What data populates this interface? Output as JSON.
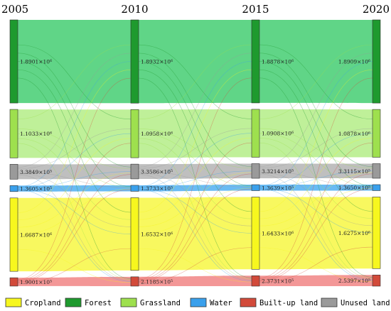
{
  "chart_data": {
    "type": "sankey",
    "years": [
      "2005",
      "2010",
      "2015",
      "2020"
    ],
    "categories": [
      {
        "key": "forest",
        "name": "Forest",
        "color": "#1e9a2e",
        "band_color": "#4fd07a"
      },
      {
        "key": "grassland",
        "name": "Grassland",
        "color": "#9ee04e",
        "band_color": "#b8ee8e"
      },
      {
        "key": "unused",
        "name": "Unused land",
        "color": "#9a9a9a",
        "band_color": "#b8b8b8"
      },
      {
        "key": "water",
        "name": "Water",
        "color": "#3aa0ec",
        "band_color": "#5ab4f2"
      },
      {
        "key": "cropland",
        "name": "Cropland",
        "color": "#f7f71e",
        "band_color": "#f7f74e"
      },
      {
        "key": "builtup",
        "name": "Built-up land",
        "color": "#d24a3a",
        "band_color": "#f28c8c"
      }
    ],
    "values": {
      "forest": [
        1890100,
        1893200,
        1887800,
        1890900
      ],
      "grassland": [
        1103300,
        1095800,
        1090800,
        1087800
      ],
      "unused": [
        338490,
        335860,
        332140,
        331150
      ],
      "water": [
        136050,
        137330,
        136390,
        136500
      ],
      "cropland": [
        1668700,
        1653200,
        1643300,
        1627500
      ],
      "builtup": [
        190010,
        211850,
        237310,
        253970
      ]
    },
    "labels": {
      "forest": [
        "1.8901×10⁶",
        "1.8932×10⁶",
        "1.8878×10⁶",
        "1.8909×10⁶"
      ],
      "grassland": [
        "1.1033×10⁶",
        "1.0958×10⁶",
        "1.0908×10⁶",
        "1.0878×10⁶"
      ],
      "unused": [
        "3.3849×10⁵",
        "3.3586×10⁵",
        "3.3214×10⁵",
        "3.3115×10⁵"
      ],
      "water": [
        "1.3605×10⁵",
        "1.3733×10⁵",
        "1.3639×10⁵",
        "1.3650×10⁵"
      ],
      "cropland": [
        "1.6687×10⁶",
        "1.6532×10⁶",
        "1.6433×10⁶",
        "1.6275×10⁶"
      ],
      "builtup": [
        "1.9001×10⁵",
        "2.1185×10⁵",
        "2.3731×10⁵",
        "2.5397×10⁵"
      ]
    },
    "legend": [
      "Cropland",
      "Forest",
      "Grassland",
      "Water",
      "Built-up land",
      "Unused land"
    ],
    "legend_position": "bottom"
  }
}
